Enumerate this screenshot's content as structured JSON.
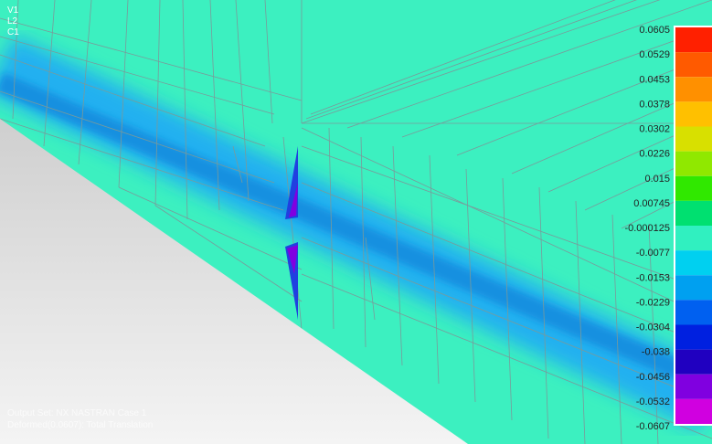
{
  "viewport": {
    "labels": [
      "V1",
      "L2",
      "C1"
    ]
  },
  "legend": {
    "values": [
      "0.0605",
      "0.0529",
      "0.0453",
      "0.0378",
      "0.0302",
      "0.0226",
      "0.015",
      "0.00745",
      "-0.000125",
      "-0.0077",
      "-0.0153",
      "-0.0229",
      "-0.0304",
      "-0.038",
      "-0.0456",
      "-0.0532",
      "-0.0607"
    ]
  },
  "footer": {
    "lines": [
      "Output Set: NX NASTRAN Case 1",
      "Deformed(0.0607): Total Translation"
    ]
  }
}
